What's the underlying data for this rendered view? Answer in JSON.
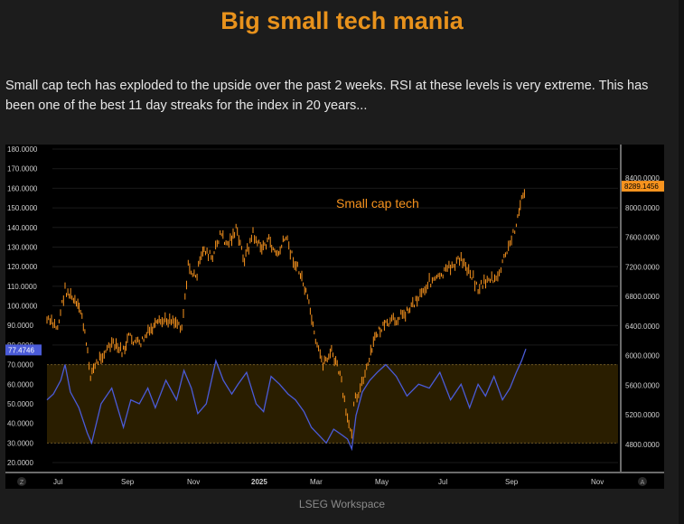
{
  "title": "Big small tech mania",
  "description": "Small cap tech has exploded to the upside over the past 2 weeks. RSI at these levels is very extreme. This has been one of the best 11 day streaks for the index in 20 years...",
  "footer": "LSEG Workspace",
  "colors": {
    "price": "#f7931e",
    "rsi": "#4a5bd8",
    "band_fill": "#2a1e00",
    "price_badge_bg": "#f7931e",
    "rsi_badge_bg": "#4a5bd8",
    "title": "#e8921c"
  },
  "chart_data": {
    "type": "line",
    "annotation": "Small cap tech",
    "x_tick_labels": [
      "Jul",
      "Sep",
      "Nov",
      "2025",
      "Mar",
      "May",
      "Jul",
      "Sep",
      "Nov"
    ],
    "corner_labels": [
      "Z",
      "A"
    ],
    "left_axis": {
      "ticks": [
        20,
        30,
        40,
        50,
        60,
        70,
        80,
        90,
        100,
        110,
        120,
        130,
        140,
        150,
        160,
        170,
        180
      ],
      "tick_labels": [
        "20.0000",
        "30.0000",
        "40.0000",
        "50.0000",
        "60.0000",
        "70.0000",
        "80.0000",
        "90.0000",
        "100.0000",
        "110.0000",
        "120.0000",
        "130.0000",
        "140.0000",
        "150.0000",
        "160.0000",
        "170.0000",
        "180.0000"
      ]
    },
    "right_axis": {
      "ticks": [
        4800,
        5200,
        5600,
        6000,
        6400,
        6800,
        7200,
        7600,
        8000,
        8400
      ],
      "tick_labels": [
        "4800.0000",
        "5200.0000",
        "5600.0000",
        "6000.0000",
        "6400.0000",
        "6800.0000",
        "7200.0000",
        "7600.0000",
        "8000.0000",
        "8400.0000"
      ]
    },
    "rsi_band": [
      30,
      70
    ],
    "last_price_label": "8289.1456",
    "last_price": 8289.1456,
    "last_rsi_label": "77.4746",
    "last_rsi": 77.4746,
    "series": [
      {
        "name": "Small cap tech",
        "axis": "right",
        "x": [
          "2024-06-25",
          "2024-07-05",
          "2024-07-12",
          "2024-07-20",
          "2024-07-28",
          "2024-08-05",
          "2024-08-15",
          "2024-08-25",
          "2024-09-05",
          "2024-09-10",
          "2024-09-20",
          "2024-10-01",
          "2024-10-10",
          "2024-10-20",
          "2024-10-30",
          "2024-11-05",
          "2024-11-12",
          "2024-11-20",
          "2024-11-28",
          "2024-12-05",
          "2024-12-12",
          "2024-12-20",
          "2024-12-28",
          "2025-01-05",
          "2025-01-12",
          "2025-01-20",
          "2025-01-28",
          "2025-02-05",
          "2025-02-12",
          "2025-02-20",
          "2025-02-28",
          "2025-03-05",
          "2025-03-12",
          "2025-03-20",
          "2025-03-28",
          "2025-04-04",
          "2025-04-08",
          "2025-04-10",
          "2025-04-16",
          "2025-04-22",
          "2025-05-01",
          "2025-05-10",
          "2025-05-20",
          "2025-05-30",
          "2025-06-10",
          "2025-06-20",
          "2025-06-30",
          "2025-07-10",
          "2025-07-20",
          "2025-07-30",
          "2025-08-05",
          "2025-08-15",
          "2025-08-22",
          "2025-08-28",
          "2025-09-04",
          "2025-09-10",
          "2025-09-15",
          "2025-09-19"
        ],
        "values": [
          6480,
          6380,
          6900,
          6750,
          6550,
          5750,
          6000,
          6150,
          6050,
          6250,
          6150,
          6350,
          6450,
          6500,
          6400,
          7200,
          7050,
          7450,
          7300,
          7650,
          7500,
          7700,
          7300,
          7650,
          7450,
          7550,
          7350,
          7600,
          7300,
          7050,
          6600,
          6150,
          5900,
          6050,
          5750,
          5100,
          5000,
          5400,
          5550,
          5800,
          6300,
          6400,
          6500,
          6600,
          6800,
          7000,
          7050,
          7200,
          7300,
          7100,
          6900,
          7050,
          7000,
          7250,
          7500,
          7800,
          8100,
          8289
        ]
      },
      {
        "name": "RSI",
        "axis": "left",
        "x": [
          "2024-06-25",
          "2024-07-01",
          "2024-07-08",
          "2024-07-12",
          "2024-07-17",
          "2024-07-25",
          "2024-08-02",
          "2024-08-06",
          "2024-08-15",
          "2024-08-25",
          "2024-09-05",
          "2024-09-12",
          "2024-09-20",
          "2024-09-28",
          "2024-10-05",
          "2024-10-15",
          "2024-10-25",
          "2024-11-01",
          "2024-11-08",
          "2024-11-14",
          "2024-11-22",
          "2024-12-01",
          "2024-12-08",
          "2024-12-16",
          "2024-12-22",
          "2024-12-30",
          "2025-01-08",
          "2025-01-15",
          "2025-01-22",
          "2025-01-30",
          "2025-02-07",
          "2025-02-14",
          "2025-02-22",
          "2025-03-01",
          "2025-03-08",
          "2025-03-15",
          "2025-03-22",
          "2025-03-30",
          "2025-04-04",
          "2025-04-08",
          "2025-04-12",
          "2025-04-18",
          "2025-04-25",
          "2025-05-02",
          "2025-05-10",
          "2025-05-20",
          "2025-05-30",
          "2025-06-10",
          "2025-06-20",
          "2025-06-30",
          "2025-07-10",
          "2025-07-20",
          "2025-07-28",
          "2025-08-05",
          "2025-08-12",
          "2025-08-20",
          "2025-08-28",
          "2025-09-04",
          "2025-09-10",
          "2025-09-15",
          "2025-09-19"
        ],
        "values": [
          52,
          55,
          62,
          70,
          56,
          48,
          35,
          30,
          50,
          58,
          38,
          52,
          50,
          58,
          48,
          62,
          52,
          67,
          58,
          45,
          50,
          72,
          62,
          55,
          60,
          66,
          50,
          46,
          64,
          60,
          55,
          52,
          46,
          38,
          34,
          30,
          37,
          34,
          32,
          27,
          44,
          56,
          62,
          66,
          70,
          64,
          54,
          60,
          58,
          66,
          52,
          60,
          48,
          60,
          54,
          64,
          52,
          58,
          66,
          72,
          78
        ]
      }
    ]
  }
}
